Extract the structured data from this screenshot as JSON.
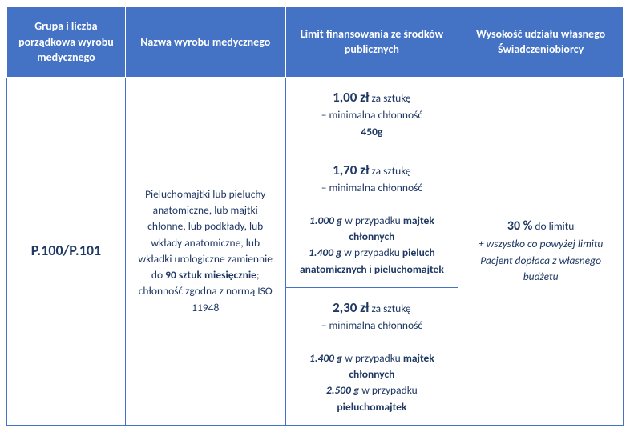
{
  "headers": {
    "col1": "Grupa i liczba porządkowa wyrobu medycznego",
    "col2": "Nazwa wyrobu medycznego",
    "col3": "Limit finansowania ze środków publicznych",
    "col4": "Wysokość udziału własnego Świadczeniobiorcy"
  },
  "code": "P.100/P.101",
  "description": {
    "part1": "Pieluchomajtki lub pieluchy anatomiczne, lub majtki chłonne, lub podkłady, lub wkłady anatomiczne, lub wkładki urologiczne zamiennie do ",
    "part2_bold": "90 sztuk miesięcznie",
    "part3": "; chłonność zgodna z normą ISO 11948"
  },
  "limit1": {
    "price": "1,00 zł",
    "per": " za sztukę",
    "line2": "– minimalna chłonność",
    "line3": "450g"
  },
  "limit2": {
    "price": "1,70 zł",
    "per": " za sztukę",
    "line2": "– minimalna chłonność",
    "w1": "1.000 g",
    "t1": " w przypadku ",
    "i1": "majtek chłonnych",
    "w2": "1.400 g",
    "t2": " w przypadku ",
    "i2a": "pieluch anatomicznych",
    "and": " i ",
    "i2b": "pieluchomajtek"
  },
  "limit3": {
    "price": "2,30 zł",
    "per": " za sztukę",
    "line2": "– minimalna chłonność",
    "w1": "1.400 g",
    "t1": " w przypadku ",
    "i1": "majtek chłonnych",
    "w2": "2.500 g",
    "t2": " w przypadku ",
    "i2": "pieluchomajtek"
  },
  "copay": {
    "pct": "30 %",
    "txt": " do limitu",
    "note": "+ wszystko co powyżej limitu Pacjent dopłaca z własnego budżetu"
  },
  "colors": {
    "header_bg": "#4472c4",
    "header_fg": "#ffffff",
    "text_color": "#1f3864",
    "border_color": "#4472c4"
  }
}
